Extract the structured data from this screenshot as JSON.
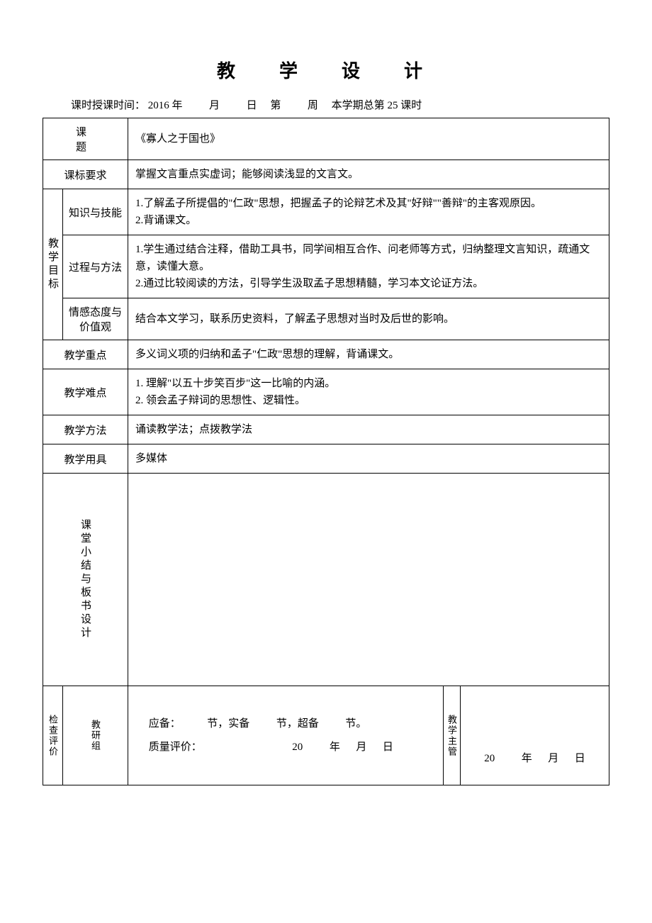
{
  "title": "教　学　设　计",
  "timing": {
    "prefix": "课时授课时间：",
    "year": "2016 年",
    "month_label": "月",
    "day_label": "日",
    "week_prefix": "第",
    "week_label": "周",
    "term_prefix": "本学期总第",
    "lesson_number": "25",
    "lesson_suffix": "课时"
  },
  "rows": {
    "topic": {
      "label": "课　　题",
      "value": "《寡人之于国也》"
    },
    "standard": {
      "label": "课标要求",
      "value": "掌握文言重点实虚词；能够阅读浅显的文言文。"
    },
    "objectives": {
      "group_label": "教学目标",
      "knowledge": {
        "label": "知识与技能",
        "value": "1.了解孟子所提倡的\"仁政\"思想，把握孟子的论辩艺术及其\"好辩\"\"善辩\"的主客观原因。\n2.背诵课文。"
      },
      "process": {
        "label": "过程与方法",
        "value": "1.学生通过结合注释，借助工具书，同学间相互合作、问老师等方式，归纳整理文言知识，疏通文意，读懂大意。\n2.通过比较阅读的方法，引导学生汲取孟子思想精髓，学习本文论证方法。"
      },
      "emotion": {
        "label": "情感态度与价值观",
        "value": "结合本文学习，联系历史资料，了解孟子思想对当时及后世的影响。"
      }
    },
    "focus": {
      "label": "教学重点",
      "value": "多义词义项的归纳和孟子\"仁政\"思想的理解，背诵课文。"
    },
    "difficulty": {
      "label": "教学难点",
      "value": "1. 理解\"以五十步笑百步\"这一比喻的内涵。\n2. 领会孟子辩词的思想性、逻辑性。"
    },
    "method": {
      "label": "教学方法",
      "value": "诵读教学法；点拨教学法"
    },
    "tools": {
      "label": "教学用具",
      "value": "多媒体"
    },
    "summary": {
      "label": "课堂小结与板书设计"
    },
    "review": {
      "group_label": "检查评价",
      "subgroup_label": "教研组",
      "line1_parts": {
        "p1": "应备：",
        "p2": "节，实备",
        "p3": "节，超备",
        "p4": "节。"
      },
      "line2_parts": {
        "p1": "质量评价：",
        "p2": "20",
        "p3": "年",
        "p4": "月",
        "p5": "日"
      },
      "admin_label": "教学主管",
      "admin_date": {
        "p1": "20",
        "p2": "年",
        "p3": "月",
        "p4": "日"
      }
    }
  },
  "colors": {
    "border": "#000000",
    "background": "#ffffff",
    "text": "#000000"
  },
  "typography": {
    "title_fontsize": 26,
    "body_fontsize": 15,
    "small_fontsize": 13,
    "font_family": "SimSun"
  }
}
